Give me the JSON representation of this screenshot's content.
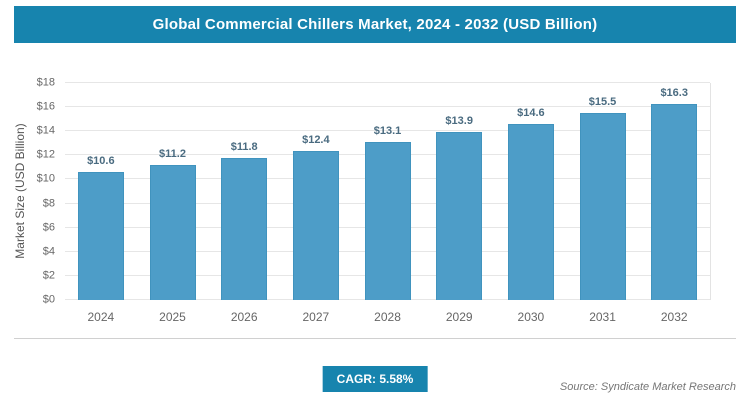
{
  "title": "Global Commercial Chillers Market, 2024 - 2032 (USD Billion)",
  "colors": {
    "header_bg": "#1784ae",
    "bar": "#4d9dc8",
    "bar_border": "#4093be",
    "value_label": "#4a6b80",
    "grid": "#e6e6e6",
    "axis_text": "#666666"
  },
  "chart_data": {
    "type": "bar",
    "categories": [
      "2024",
      "2025",
      "2026",
      "2027",
      "2028",
      "2029",
      "2030",
      "2031",
      "2032"
    ],
    "values": [
      10.6,
      11.2,
      11.8,
      12.4,
      13.1,
      13.9,
      14.6,
      15.5,
      16.3
    ],
    "value_labels": [
      "$10.6",
      "$11.2",
      "$11.8",
      "$12.4",
      "$13.1",
      "$13.9",
      "$14.6",
      "$15.5",
      "$16.3"
    ],
    "title": "Global Commercial Chillers Market, 2024 - 2032 (USD Billion)",
    "xlabel": "",
    "ylabel": "Market Size (USD Billion)",
    "ylim": [
      0,
      18
    ],
    "ytick_step": 2,
    "ytick_labels": [
      "$0",
      "$2",
      "$4",
      "$6",
      "$8",
      "$10",
      "$12",
      "$14",
      "$16",
      "$18"
    ],
    "grid": true,
    "legend": "none"
  },
  "footer": {
    "cagr_label": "CAGR: 5.58%",
    "source": "Source: Syndicate Market Research"
  }
}
